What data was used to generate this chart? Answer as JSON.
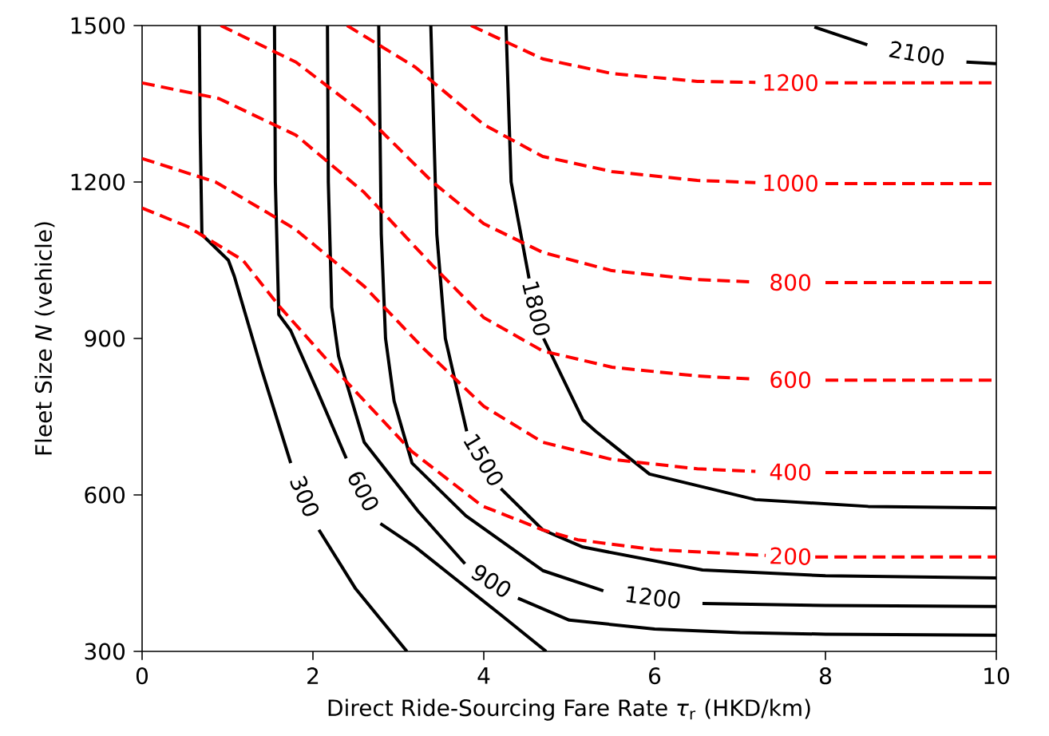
{
  "chart_data": {
    "type": "line",
    "xlabel": "Direct Ride-Sourcing Fare Rate *τ*$_{r}$ (HKD/km)",
    "ylabel": "Fleet Size *N* (vehicle)",
    "xlim": [
      0,
      10
    ],
    "ylim": [
      300,
      1500
    ],
    "xticks": [
      0,
      2,
      4,
      6,
      8,
      10
    ],
    "yticks": [
      300,
      600,
      900,
      1200,
      1500
    ],
    "series": [
      {
        "name": "300",
        "color": "#000000",
        "line_style": "solid",
        "x": [
          0.67,
          0.68,
          0.7,
          1.01,
          1.08,
          1.4,
          1.74,
          1.9,
          2.07,
          2.5,
          3.1
        ],
        "values": [
          1500,
          1300,
          1099,
          1050,
          1019,
          840,
          661,
          null,
          533,
          420,
          300
        ]
      },
      {
        "name": "600",
        "color": "#000000",
        "line_style": "solid",
        "x": [
          1.55,
          1.56,
          1.6,
          1.74,
          2.05,
          2.39,
          2.6,
          2.79,
          3.2,
          3.66,
          4.2,
          4.73
        ],
        "values": [
          1500,
          1200,
          946,
          915,
          800,
          670,
          null,
          545,
          500,
          440,
          370,
          300
        ]
      },
      {
        "name": "900",
        "color": "#000000",
        "line_style": "solid",
        "x": [
          2.17,
          2.18,
          2.22,
          2.3,
          2.6,
          3.23,
          3.78,
          4.08,
          4.4,
          5.0,
          6.0,
          7.0,
          8.0,
          10.0
        ],
        "values": [
          1500,
          1200,
          960,
          866,
          701,
          569,
          468,
          null,
          402,
          360,
          343,
          336,
          333,
          331
        ]
      },
      {
        "name": "1200",
        "color": "#000000",
        "line_style": "solid",
        "x": [
          2.77,
          2.8,
          2.85,
          2.95,
          3.16,
          3.79,
          4.69,
          5.4,
          5.98,
          6.56,
          8.0,
          10.0
        ],
        "values": [
          1500,
          1100,
          900,
          780,
          661,
          560,
          455,
          416,
          null,
          392,
          388,
          386
        ]
      },
      {
        "name": "1500",
        "color": "#000000",
        "line_style": "solid",
        "x": [
          3.38,
          3.45,
          3.55,
          3.8,
          4.0,
          4.2,
          4.69,
          5.16,
          6.56,
          8.0,
          10.0
        ],
        "values": [
          1500,
          1100,
          900,
          722,
          null,
          612,
          533,
          500,
          456,
          445,
          441
        ]
      },
      {
        "name": "1800",
        "color": "#000000",
        "line_style": "solid",
        "x": [
          4.26,
          4.32,
          4.53,
          4.61,
          4.7,
          5.16,
          5.31,
          5.94,
          7.18,
          8.5,
          10.0
        ],
        "values": [
          1500,
          1200,
          1015,
          null,
          900,
          744,
          722,
          640,
          591,
          578,
          575
        ]
      },
      {
        "name": "2100",
        "color": "#000000",
        "line_style": "solid",
        "x": [
          7.87,
          8.49,
          9.07,
          9.65,
          10.0
        ],
        "values": [
          1497,
          1463,
          null,
          1430,
          1427
        ]
      },
      {
        "name": "200",
        "color": "#ff0000",
        "line_style": "dashed",
        "x": [
          0,
          0.54,
          1.18,
          1.61,
          2.41,
          3.16,
          3.98,
          4.69,
          5.1,
          6.0,
          7.3,
          7.59,
          7.88,
          10.0
        ],
        "values": [
          1150,
          1114,
          1050,
          961,
          814,
          683,
          579,
          533,
          514,
          495,
          484,
          null,
          481,
          481
        ]
      },
      {
        "name": "400",
        "color": "#ff0000",
        "line_style": "dashed",
        "x": [
          0,
          0.86,
          1.79,
          2.6,
          3.3,
          4.0,
          4.69,
          5.5,
          6.5,
          7.18,
          7.59,
          8.0,
          10.0
        ],
        "values": [
          1245,
          1200,
          1110,
          1000,
          880,
          770,
          701,
          668,
          650,
          645,
          null,
          643,
          643
        ]
      },
      {
        "name": "600",
        "color": "#ff0000",
        "line_style": "dashed",
        "x": [
          0,
          0.9,
          1.8,
          2.6,
          3.4,
          4.0,
          4.69,
          5.5,
          6.5,
          7.18,
          7.59,
          8.0,
          10.0
        ],
        "values": [
          1390,
          1360,
          1290,
          1180,
          1040,
          940,
          876,
          845,
          828,
          822,
          null,
          820,
          820
        ]
      },
      {
        "name": "800",
        "color": "#ff0000",
        "line_style": "dashed",
        "x": [
          0.92,
          1.8,
          2.6,
          3.4,
          4.0,
          4.69,
          5.5,
          6.5,
          7.18,
          7.59,
          8.0,
          10.0
        ],
        "values": [
          1500,
          1430,
          1330,
          1200,
          1120,
          1065,
          1030,
          1013,
          1008,
          null,
          1007,
          1007
        ]
      },
      {
        "name": "1000",
        "color": "#ff0000",
        "line_style": "dashed",
        "x": [
          2.4,
          3.2,
          4.0,
          4.69,
          5.5,
          6.5,
          7.18,
          7.59,
          8.0,
          10.0
        ],
        "values": [
          1500,
          1420,
          1310,
          1249,
          1220,
          1203,
          1199,
          null,
          1197,
          1197
        ]
      },
      {
        "name": "1200",
        "color": "#ff0000",
        "line_style": "dashed",
        "x": [
          3.85,
          4.69,
          5.5,
          6.5,
          7.18,
          7.59,
          8.0,
          10.0
        ],
        "values": [
          1500,
          1436,
          1408,
          1393,
          1391,
          null,
          1390,
          1390
        ]
      }
    ]
  }
}
